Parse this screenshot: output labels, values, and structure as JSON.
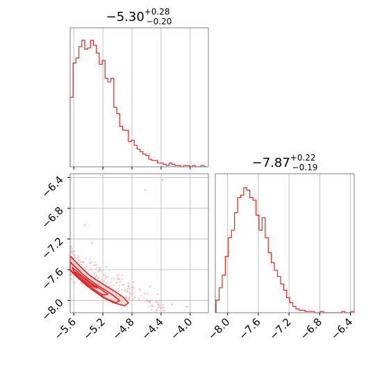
{
  "colors": {
    "accent": "#d62728",
    "grid": "#b0b0b0",
    "frame": "#808080",
    "contour_fill": "#f2b8b8",
    "scatter": "#f4a6a6"
  },
  "chart_data": [
    {
      "type": "histogram",
      "panel": "top-left",
      "title": "−5.30",
      "title_sup": "+0.28",
      "title_sub": "−0.20",
      "xlim": [
        -5.65,
        -3.75
      ],
      "grid": true,
      "bin_edges_start": -5.65,
      "bin_width": 0.04,
      "counts": [
        0.55,
        0.82,
        0.86,
        0.95,
        1.0,
        0.93,
        0.94,
        1.0,
        0.96,
        0.9,
        0.81,
        0.84,
        0.7,
        0.67,
        0.7,
        0.47,
        0.42,
        0.32,
        0.29,
        0.29,
        0.2,
        0.21,
        0.17,
        0.14,
        0.12,
        0.1,
        0.09,
        0.06,
        0.05,
        0.05,
        0.03,
        0.03,
        0.02,
        0.01,
        0.03,
        0.02,
        0.01,
        0.01,
        0.0,
        0.01,
        0.01,
        0.0,
        0.01,
        0.0,
        0.0,
        0.01,
        0.0
      ]
    },
    {
      "type": "scatter-contour",
      "panel": "bottom-left",
      "xlim": [
        -5.65,
        -3.75
      ],
      "ylim": [
        -8.16,
        -6.35
      ],
      "grid": true,
      "x_ticks": [
        "−5.6",
        "−5.2",
        "−4.8",
        "−4.4",
        "−4.0"
      ],
      "x_tick_values": [
        -5.6,
        -5.2,
        -4.8,
        -4.4,
        -4.0
      ],
      "y_ticks": [
        "−6.4",
        "−6.8",
        "−7.2",
        "−7.6",
        "−8.0"
      ],
      "y_tick_values": [
        -6.4,
        -6.8,
        -7.2,
        -7.6,
        -8.0
      ],
      "outliers": [
        [
          -4.62,
          -6.56
        ],
        [
          -4.38,
          -6.43
        ],
        [
          -5.45,
          -7.02
        ],
        [
          -5.35,
          -7.25
        ],
        [
          -4.55,
          -7.82
        ],
        [
          -4.45,
          -7.92
        ],
        [
          -4.25,
          -8.05
        ],
        [
          -4.05,
          -8.08
        ]
      ],
      "contours": [
        [
          [
            -5.65,
            -7.42
          ],
          [
            -5.52,
            -7.55
          ],
          [
            -5.4,
            -7.66
          ],
          [
            -5.28,
            -7.74
          ],
          [
            -5.16,
            -7.81
          ],
          [
            -5.04,
            -7.88
          ],
          [
            -4.93,
            -7.95
          ],
          [
            -4.85,
            -8.03
          ],
          [
            -4.9,
            -8.07
          ],
          [
            -5.05,
            -8.03
          ],
          [
            -5.2,
            -7.96
          ],
          [
            -5.35,
            -7.86
          ],
          [
            -5.5,
            -7.74
          ],
          [
            -5.65,
            -7.6
          ]
        ],
        [
          [
            -5.65,
            -7.5
          ],
          [
            -5.52,
            -7.62
          ],
          [
            -5.4,
            -7.72
          ],
          [
            -5.28,
            -7.8
          ],
          [
            -5.16,
            -7.87
          ],
          [
            -5.05,
            -7.94
          ],
          [
            -4.97,
            -8.0
          ],
          [
            -5.02,
            -8.03
          ],
          [
            -5.15,
            -7.98
          ],
          [
            -5.28,
            -7.9
          ],
          [
            -5.42,
            -7.81
          ],
          [
            -5.55,
            -7.7
          ],
          [
            -5.65,
            -7.61
          ]
        ],
        [
          [
            -5.62,
            -7.57
          ],
          [
            -5.5,
            -7.67
          ],
          [
            -5.38,
            -7.76
          ],
          [
            -5.25,
            -7.84
          ],
          [
            -5.13,
            -7.92
          ],
          [
            -5.2,
            -7.93
          ],
          [
            -5.33,
            -7.85
          ],
          [
            -5.46,
            -7.76
          ],
          [
            -5.58,
            -7.66
          ]
        ],
        [
          [
            -5.58,
            -7.63
          ],
          [
            -5.46,
            -7.72
          ],
          [
            -5.34,
            -7.8
          ],
          [
            -5.28,
            -7.84
          ],
          [
            -5.36,
            -7.81
          ],
          [
            -5.48,
            -7.73
          ],
          [
            -5.57,
            -7.66
          ]
        ]
      ]
    },
    {
      "type": "histogram",
      "panel": "bottom-right",
      "title": "−7.87",
      "title_sup": "+0.22",
      "title_sub": "−0.19",
      "xlim": [
        -8.16,
        -6.35
      ],
      "grid": true,
      "x_ticks": [
        "−8.0",
        "−7.6",
        "−7.2",
        "−6.8",
        "−6.4"
      ],
      "x_tick_values": [
        -8.0,
        -7.6,
        -7.2,
        -6.8,
        -6.4
      ],
      "bin_edges_start": -8.15,
      "bin_width": 0.04,
      "counts": [
        0.1,
        0.2,
        0.3,
        0.45,
        0.6,
        0.66,
        0.8,
        0.92,
        0.94,
        1.0,
        0.98,
        0.92,
        0.9,
        0.78,
        0.66,
        0.76,
        0.6,
        0.48,
        0.4,
        0.34,
        0.29,
        0.23,
        0.18,
        0.12,
        0.08,
        0.05,
        0.03,
        0.02,
        0.02,
        0.01,
        0.01,
        0.01,
        0.0,
        0.0,
        0.01,
        0.0,
        0.0,
        0.0,
        0.0,
        0.0,
        0.0,
        0.01,
        0.0,
        0.0,
        0.01
      ]
    }
  ]
}
